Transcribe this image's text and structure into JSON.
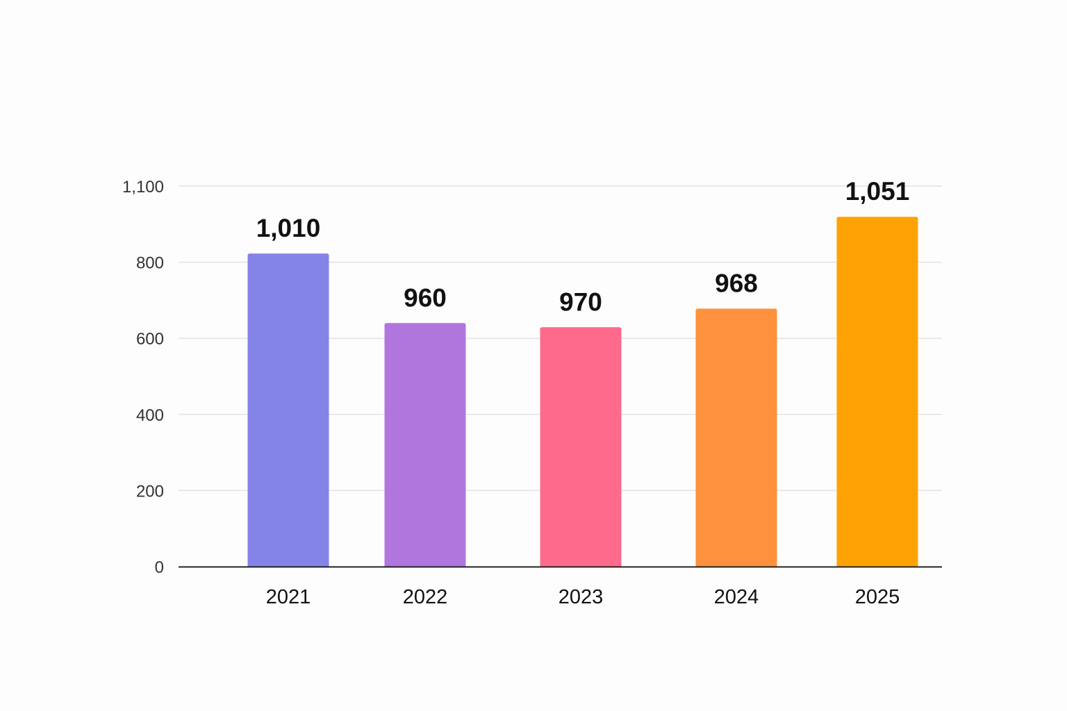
{
  "chart_data": {
    "type": "bar",
    "title": "",
    "xlabel": "",
    "ylabel": "",
    "categories": [
      "2021",
      "2022",
      "2023",
      "2024",
      "2025"
    ],
    "values": [
      1010,
      960,
      970,
      968,
      1051
    ],
    "data_labels": [
      "1,010",
      "960",
      "970",
      "968",
      "1,051"
    ],
    "bar_levels_on_axis": [
      834,
      640,
      629,
      678,
      979
    ],
    "colors": [
      "#8484e8",
      "#b176dd",
      "#fe6a8b",
      "#fe913d",
      "#fea303"
    ],
    "yticks": [
      0,
      200,
      400,
      600,
      800,
      1100
    ],
    "ytick_labels": [
      "0",
      "200",
      "400",
      "600",
      "800",
      "1,100"
    ],
    "ylim": [
      0,
      1100
    ],
    "grid": true,
    "legend": "none"
  }
}
